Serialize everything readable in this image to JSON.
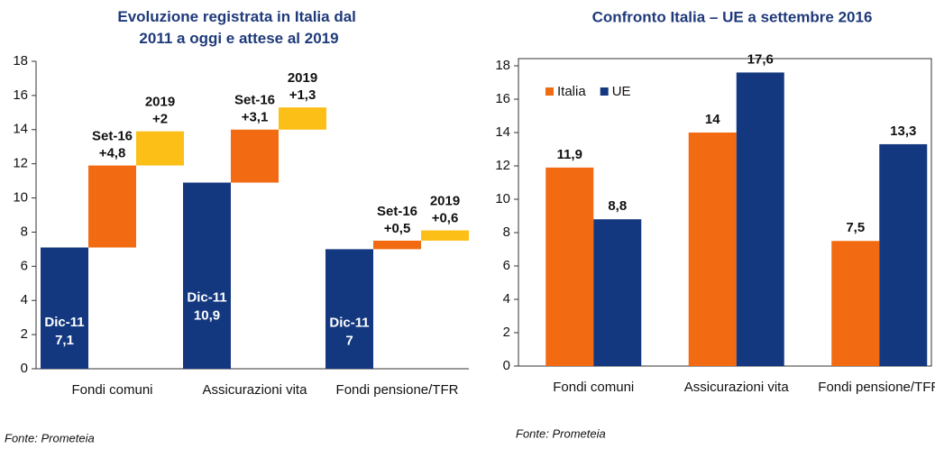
{
  "chart_data": [
    {
      "type": "waterfall",
      "title": "Evoluzione registrata in Italia dal 2011 a oggi e attese al 2019",
      "categories": [
        "Fondi comuni",
        "Assicurazioni vita",
        "Fondi pensione/TFR"
      ],
      "series": [
        {
          "name": "Dic-11",
          "color": "#14387f",
          "values": [
            7.1,
            10.9,
            7
          ],
          "value_labels": [
            "7,1",
            "10,9",
            "7"
          ]
        },
        {
          "name": "Set-16",
          "color": "#f26b12",
          "values": [
            4.8,
            3.1,
            0.5
          ],
          "value_labels": [
            "+4,8",
            "+3,1",
            "+0,5"
          ]
        },
        {
          "name": "2019",
          "color": "#fcbf17",
          "values": [
            2,
            1.3,
            0.6
          ],
          "value_labels": [
            "+2",
            "+1,3",
            "+0,6"
          ]
        }
      ],
      "ylim": [
        0,
        18
      ],
      "yticks": [
        0,
        2,
        4,
        6,
        8,
        10,
        12,
        14,
        16,
        18
      ],
      "grid": false,
      "source": "Fonte: Prometeia"
    },
    {
      "type": "bar",
      "title": "Confronto Italia – UE a settembre 2016",
      "categories": [
        "Fondi comuni",
        "Assicurazioni vita",
        "Fondi pensione/TFR"
      ],
      "series": [
        {
          "name": "Italia",
          "color": "#f26b12",
          "values": [
            11.9,
            14,
            7.5
          ],
          "value_labels": [
            "11,9",
            "14",
            "7,5"
          ]
        },
        {
          "name": "UE",
          "color": "#14387f",
          "values": [
            8.8,
            17.6,
            13.3
          ],
          "value_labels": [
            "8,8",
            "17,6",
            "13,3"
          ]
        }
      ],
      "ylim": [
        0,
        18
      ],
      "yticks": [
        0,
        2,
        4,
        6,
        8,
        10,
        12,
        14,
        16,
        18
      ],
      "grid": false,
      "legend": "top-left",
      "source": "Fonte: Prometeia"
    }
  ]
}
